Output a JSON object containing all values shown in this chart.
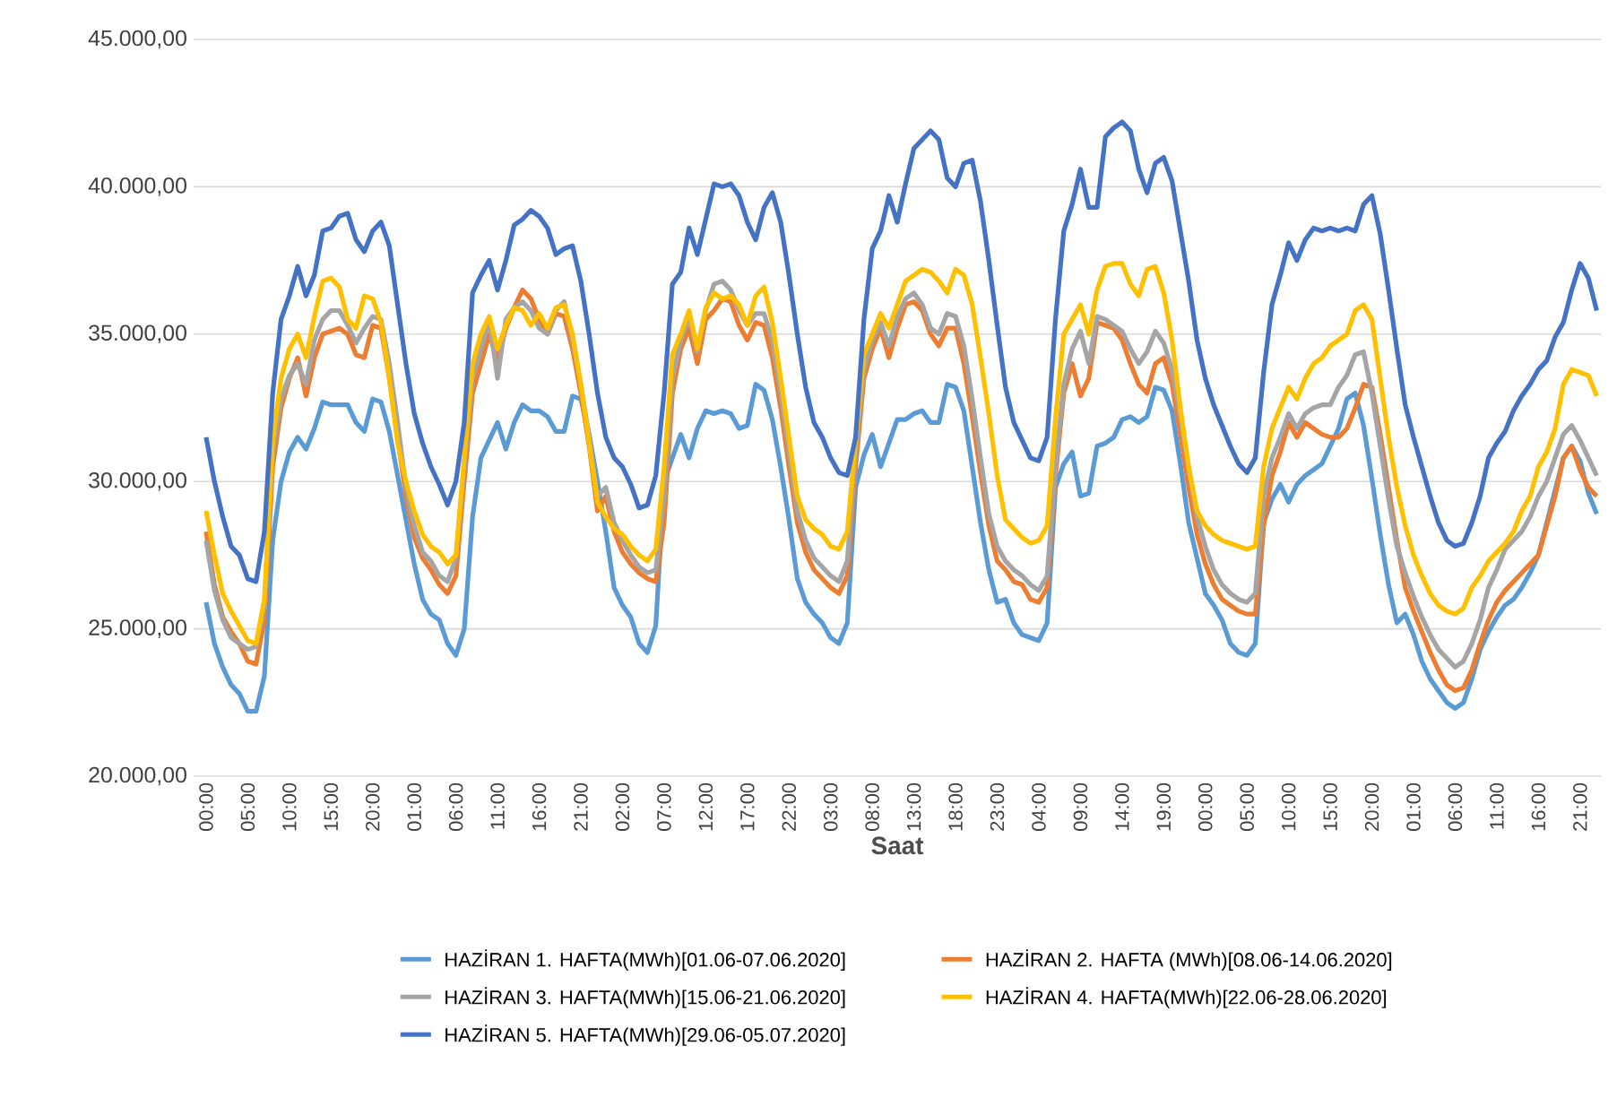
{
  "chart_data": {
    "type": "line",
    "xlabel": "Saat",
    "categories": [
      "00:00",
      null,
      null,
      null,
      null,
      "05:00",
      null,
      null,
      null,
      null,
      "10:00",
      null,
      null,
      null,
      null,
      "15:00",
      null,
      null,
      null,
      null,
      "20:00",
      null,
      null,
      null,
      null,
      "01:00",
      null,
      null,
      null,
      null,
      "06:00",
      null,
      null,
      null,
      null,
      "11:00",
      null,
      null,
      null,
      null,
      "16:00",
      null,
      null,
      null,
      null,
      "21:00",
      null,
      null,
      null,
      null,
      "02:00",
      null,
      null,
      null,
      null,
      "07:00",
      null,
      null,
      null,
      null,
      "12:00",
      null,
      null,
      null,
      null,
      "17:00",
      null,
      null,
      null,
      null,
      "22:00",
      null,
      null,
      null,
      null,
      "03:00",
      null,
      null,
      null,
      null,
      "08:00",
      null,
      null,
      null,
      null,
      "13:00",
      null,
      null,
      null,
      null,
      "18:00",
      null,
      null,
      null,
      null,
      "23:00",
      null,
      null,
      null,
      null,
      "04:00",
      null,
      null,
      null,
      null,
      "09:00",
      null,
      null,
      null,
      null,
      "14:00",
      null,
      null,
      null,
      null,
      "19:00",
      null,
      null,
      null,
      null,
      "00:00",
      null,
      null,
      null,
      null,
      "05:00",
      null,
      null,
      null,
      null,
      "10:00",
      null,
      null,
      null,
      null,
      "15:00",
      null,
      null,
      null,
      null,
      "20:00",
      null,
      null,
      null,
      null,
      "01:00",
      null,
      null,
      null,
      null,
      "06:00",
      null,
      null,
      null,
      null,
      "11:00",
      null,
      null,
      null,
      null,
      "16:00",
      null,
      null,
      null,
      null,
      "21:00",
      null,
      null
    ],
    "ylim": [
      20000,
      45000
    ],
    "yticks": [
      {
        "value": 20000,
        "label": "20.000,00"
      },
      {
        "value": 25000,
        "label": "25.000,00"
      },
      {
        "value": 30000,
        "label": "30.000,00"
      },
      {
        "value": 35000,
        "label": "35.000,00"
      },
      {
        "value": 40000,
        "label": "40.000,00"
      },
      {
        "value": 45000,
        "label": "45.000,00"
      }
    ],
    "grid": "y",
    "legend": "bottom",
    "series": [
      {
        "name": "HAZİRAN 1. HAFTA(MWh)[01.06-07.06.2020]",
        "color": "#5b9bd5",
        "values": [
          25900,
          24500,
          23700,
          23100,
          22800,
          22200,
          22200,
          23400,
          28000,
          30000,
          31000,
          31500,
          31100,
          31800,
          32700,
          32600,
          32600,
          32600,
          32000,
          31700,
          32800,
          32700,
          31700,
          30200,
          28700,
          27200,
          26000,
          25500,
          25300,
          24500,
          24100,
          25000,
          28800,
          30800,
          31400,
          32000,
          31100,
          32000,
          32600,
          32400,
          32400,
          32200,
          31700,
          31700,
          32900,
          32800,
          31600,
          30000,
          28300,
          26400,
          25800,
          25400,
          24500,
          24200,
          25100,
          30000,
          30800,
          31600,
          30800,
          31800,
          32400,
          32300,
          32400,
          32300,
          31800,
          31900,
          33300,
          33100,
          32100,
          30500,
          28700,
          26700,
          25900,
          25500,
          25200,
          24700,
          24500,
          25200,
          29800,
          30900,
          31600,
          30500,
          31300,
          32100,
          32100,
          32300,
          32400,
          32000,
          32000,
          33300,
          33200,
          32400,
          30500,
          28600,
          27000,
          25900,
          26000,
          25200,
          24800,
          24700,
          24600,
          25200,
          29800,
          30600,
          31000,
          29500,
          29600,
          31200,
          31300,
          31500,
          32100,
          32200,
          32000,
          32200,
          33200,
          33100,
          32400,
          30600,
          28600,
          27400,
          26200,
          25800,
          25300,
          24500,
          24200,
          24100,
          24500,
          28600,
          29400,
          29900,
          29300,
          29900,
          30200,
          30400,
          30600,
          31200,
          31800,
          32800,
          33000,
          31900,
          30100,
          28200,
          26500,
          25200,
          25500,
          24800,
          23900,
          23300,
          22900,
          22500,
          22300,
          22500,
          23300,
          24300,
          24900,
          25400,
          25800,
          26000,
          26400,
          26900,
          27500,
          28600,
          29700,
          30800,
          31200,
          30700,
          29600,
          28900
        ]
      },
      {
        "name": "HAZİRAN 2. HAFTA (MWh)[08.06-14.06.2020]",
        "color": "#ed7d31",
        "values": [
          28300,
          26500,
          25400,
          24900,
          24500,
          23900,
          23800,
          25300,
          30500,
          32500,
          33500,
          34200,
          32900,
          34200,
          35000,
          35100,
          35200,
          35000,
          34300,
          34200,
          35300,
          35200,
          33500,
          31500,
          29500,
          28100,
          27400,
          27000,
          26500,
          26200,
          26800,
          30000,
          33000,
          34000,
          35000,
          34100,
          35200,
          35900,
          36500,
          36200,
          35500,
          35000,
          35700,
          35600,
          34500,
          33000,
          31200,
          29000,
          29500,
          28300,
          27600,
          27200,
          26900,
          26700,
          26600,
          28600,
          33000,
          34500,
          35200,
          34000,
          35500,
          35800,
          36200,
          36100,
          35300,
          34800,
          35400,
          35300,
          34200,
          32500,
          30500,
          28600,
          27600,
          27000,
          26700,
          26400,
          26200,
          26800,
          30500,
          33500,
          34500,
          35200,
          34200,
          35200,
          36000,
          36100,
          35800,
          35000,
          34600,
          35200,
          35200,
          34000,
          32200,
          30300,
          28500,
          27300,
          27000,
          26600,
          26500,
          26000,
          25900,
          26400,
          30200,
          33000,
          34000,
          32900,
          33500,
          35400,
          35300,
          35200,
          34800,
          34000,
          33300,
          33000,
          34000,
          34200,
          33300,
          31600,
          29800,
          28200,
          27200,
          26500,
          26000,
          25800,
          25600,
          25500,
          25500,
          28500,
          30200,
          31000,
          32000,
          31500,
          32000,
          31800,
          31600,
          31500,
          31500,
          31800,
          32500,
          33300,
          33200,
          31600,
          29800,
          28000,
          26400,
          25600,
          24900,
          24200,
          23600,
          23100,
          22900,
          23000,
          23600,
          24500,
          25300,
          25900,
          26300,
          26600,
          26900,
          27200,
          27500,
          28500,
          29500,
          30800,
          31200,
          30400,
          29800,
          29500
        ]
      },
      {
        "name": "HAZİRAN 3. HAFTA(MWh)[15.06-21.06.2020]",
        "color": "#a5a5a5",
        "values": [
          28000,
          26300,
          25300,
          24700,
          24500,
          24300,
          24400,
          25800,
          31000,
          32800,
          33600,
          34000,
          33300,
          34800,
          35500,
          35800,
          35800,
          35300,
          34700,
          35200,
          35600,
          35500,
          34000,
          32000,
          29800,
          28500,
          27600,
          27300,
          26800,
          26600,
          27400,
          30500,
          33500,
          34500,
          35500,
          33500,
          35500,
          35900,
          36100,
          35800,
          35200,
          35000,
          35800,
          36100,
          34800,
          33300,
          31500,
          29500,
          29800,
          28600,
          28000,
          27500,
          27100,
          26900,
          27000,
          29500,
          33500,
          34800,
          35600,
          34400,
          35800,
          36700,
          36800,
          36500,
          35800,
          35300,
          35700,
          35700,
          34800,
          33000,
          31000,
          29000,
          28000,
          27400,
          27100,
          26800,
          26600,
          27300,
          31000,
          33800,
          34800,
          35400,
          34600,
          35600,
          36200,
          36400,
          36000,
          35200,
          35000,
          35700,
          35600,
          34600,
          32800,
          30800,
          28900,
          27800,
          27300,
          27000,
          26800,
          26500,
          26300,
          26800,
          30500,
          33300,
          34500,
          35100,
          34000,
          35600,
          35500,
          35300,
          35100,
          34500,
          34000,
          34400,
          35100,
          34700,
          33800,
          32200,
          30400,
          28800,
          27800,
          27000,
          26500,
          26200,
          26000,
          25900,
          26200,
          29500,
          30800,
          31500,
          32300,
          31800,
          32300,
          32500,
          32600,
          32600,
          33200,
          33600,
          34300,
          34400,
          33000,
          31200,
          29400,
          27800,
          26900,
          26100,
          25400,
          24800,
          24300,
          24000,
          23700,
          23900,
          24500,
          25300,
          26400,
          27000,
          27700,
          28000,
          28300,
          28800,
          29500,
          30000,
          30800,
          31600,
          31900,
          31400,
          30800,
          30200
        ]
      },
      {
        "name": "HAZİRAN 4. HAFTA(MWh)[22.06-28.06.2020]",
        "color": "#ffc000",
        "values": [
          29000,
          27500,
          26200,
          25600,
          25100,
          24600,
          24500,
          26000,
          31400,
          33500,
          34500,
          35000,
          34200,
          35600,
          36800,
          36900,
          36600,
          35500,
          35200,
          36300,
          36200,
          35400,
          33500,
          31300,
          30000,
          29000,
          28200,
          27800,
          27600,
          27200,
          27500,
          30800,
          34000,
          35000,
          35600,
          34500,
          35300,
          35900,
          35800,
          35300,
          35700,
          35200,
          35900,
          36000,
          35000,
          33300,
          31300,
          29300,
          28800,
          28400,
          28200,
          27800,
          27500,
          27300,
          27700,
          30500,
          34300,
          35000,
          35800,
          34500,
          35900,
          36400,
          36200,
          36300,
          36000,
          35300,
          36300,
          36600,
          35400,
          33500,
          31500,
          29500,
          28700,
          28400,
          28200,
          27800,
          27700,
          28300,
          31400,
          34300,
          35000,
          35700,
          35200,
          36000,
          36800,
          37000,
          37200,
          37100,
          36800,
          36400,
          37200,
          37000,
          36000,
          34200,
          32300,
          30200,
          28700,
          28400,
          28100,
          27900,
          28000,
          28500,
          32100,
          35000,
          35500,
          36000,
          35000,
          36500,
          37300,
          37400,
          37400,
          36700,
          36300,
          37200,
          37300,
          36400,
          34800,
          32500,
          30500,
          29000,
          28500,
          28200,
          28000,
          27900,
          27800,
          27700,
          27800,
          30500,
          31800,
          32500,
          33200,
          32800,
          33500,
          34000,
          34200,
          34600,
          34800,
          35000,
          35800,
          36000,
          35500,
          33500,
          31500,
          29800,
          28500,
          27500,
          26800,
          26200,
          25800,
          25600,
          25500,
          25700,
          26400,
          26800,
          27300,
          27600,
          27900,
          28300,
          29000,
          29500,
          30500,
          31000,
          31800,
          33300,
          33800,
          33700,
          33600,
          32900
        ]
      },
      {
        "name": "HAZİRAN 5. HAFTA(MWh)[29.06-05.07.2020]",
        "color": "#4472c4",
        "values": [
          31500,
          30000,
          28800,
          27800,
          27500,
          26700,
          26600,
          28300,
          33000,
          35500,
          36300,
          37300,
          36300,
          37000,
          38500,
          38600,
          39000,
          39100,
          38200,
          37800,
          38500,
          38800,
          38000,
          36000,
          34000,
          32300,
          31300,
          30500,
          29900,
          29200,
          30000,
          32000,
          36400,
          37000,
          37500,
          36500,
          37500,
          38700,
          38900,
          39200,
          39000,
          38600,
          37700,
          37900,
          38000,
          36800,
          35000,
          33000,
          31500,
          30800,
          30500,
          29900,
          29100,
          29200,
          30200,
          33000,
          36700,
          37100,
          38600,
          37700,
          38900,
          40100,
          40000,
          40100,
          39700,
          38800,
          38200,
          39300,
          39800,
          38800,
          37000,
          35000,
          33200,
          32000,
          31500,
          30800,
          30300,
          30200,
          31500,
          35500,
          37900,
          38500,
          39700,
          38800,
          40100,
          41300,
          41600,
          41900,
          41600,
          40300,
          40000,
          40800,
          40900,
          39500,
          37500,
          35300,
          33200,
          32000,
          31400,
          30800,
          30700,
          31500,
          35500,
          38500,
          39400,
          40600,
          39300,
          39300,
          41700,
          42000,
          42200,
          41900,
          40600,
          39800,
          40800,
          41000,
          40200,
          38500,
          36800,
          34800,
          33500,
          32600,
          31900,
          31200,
          30600,
          30300,
          30800,
          33700,
          36000,
          37000,
          38100,
          37500,
          38200,
          38600,
          38500,
          38600,
          38500,
          38600,
          38500,
          39400,
          39700,
          38400,
          36500,
          34500,
          32600,
          31500,
          30500,
          29500,
          28600,
          28000,
          27800,
          27900,
          28600,
          29500,
          30800,
          31300,
          31700,
          32400,
          32900,
          33300,
          33800,
          34100,
          34900,
          35400,
          36500,
          37400,
          36900,
          35800
        ]
      }
    ]
  }
}
